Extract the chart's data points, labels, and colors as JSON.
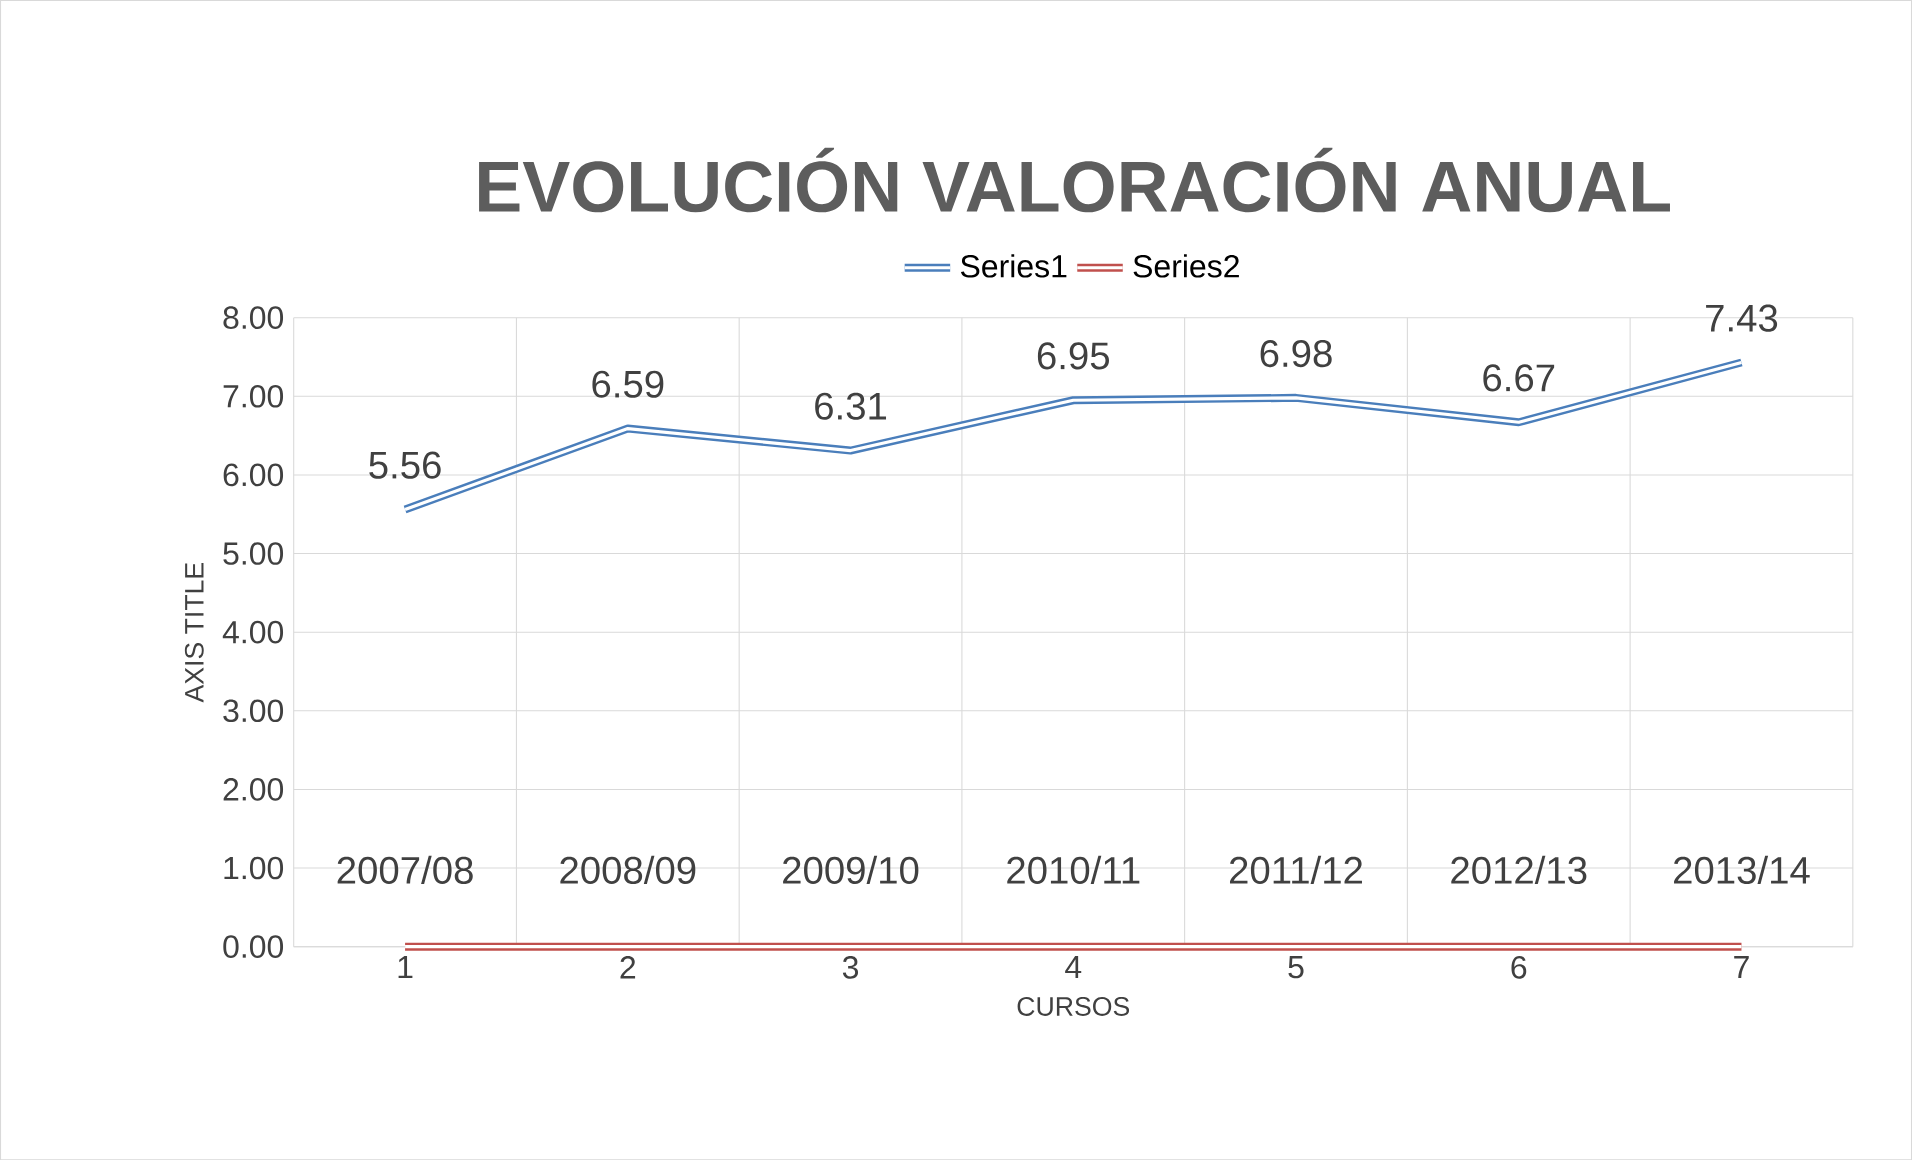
{
  "chart_data": {
    "type": "line",
    "title": "EVOLUCIÓN VALORACIÓN ANUAL",
    "xlabel": "CURSOS",
    "ylabel": "AXIS TITLE",
    "categories": [
      "1",
      "2",
      "3",
      "4",
      "5",
      "6",
      "7"
    ],
    "series": [
      {
        "name": "Series1",
        "color": "#4a7ebb",
        "values": [
          5.56,
          6.59,
          6.31,
          6.95,
          6.98,
          6.67,
          7.43
        ],
        "value_labels": [
          "5.56",
          "6.59",
          "6.31",
          "6.95",
          "6.98",
          "6.67",
          "7.43"
        ]
      },
      {
        "name": "Series2",
        "color": "#c0504d",
        "values": [
          0,
          0,
          0,
          0,
          0,
          0,
          0
        ],
        "value_labels": [
          "2007/08",
          "2008/09",
          "2009/10",
          "2010/11",
          "2011/12",
          "2012/13",
          "2013/14"
        ]
      }
    ],
    "ylim": [
      0,
      8
    ],
    "yticks": [
      {
        "value": 0,
        "label": "0.00"
      },
      {
        "value": 1,
        "label": "1.00"
      },
      {
        "value": 2,
        "label": "2.00"
      },
      {
        "value": 3,
        "label": "3.00"
      },
      {
        "value": 4,
        "label": "4.00"
      },
      {
        "value": 5,
        "label": "5.00"
      },
      {
        "value": 6,
        "label": "6.00"
      },
      {
        "value": 7,
        "label": "7.00"
      },
      {
        "value": 8,
        "label": "8.00"
      }
    ],
    "grid": true,
    "legend": "top",
    "marker": "none",
    "line_style": "solid"
  }
}
